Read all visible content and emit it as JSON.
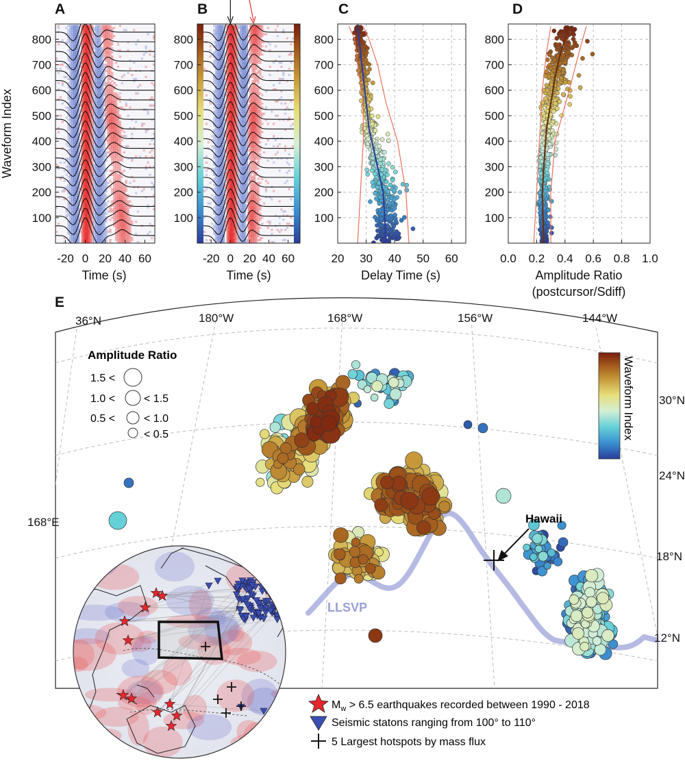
{
  "panels": {
    "A": {
      "label": "A",
      "ylabel": "Waveform Index",
      "xlabel": "Time (s)",
      "xticks": [
        -20,
        0,
        20,
        40,
        60
      ],
      "yticks": [
        100,
        200,
        300,
        400,
        500,
        600,
        700,
        800
      ],
      "xlim": [
        -30,
        70
      ],
      "ylim": [
        0,
        860
      ]
    },
    "B": {
      "label": "B",
      "xlabel": "Time (s)",
      "xticks": [
        -20,
        0,
        20,
        40,
        60
      ],
      "yticks": [
        100,
        200,
        300,
        400,
        500,
        600,
        700,
        800
      ],
      "xlim": [
        -28,
        66
      ],
      "ylim": [
        0,
        860
      ],
      "arrow_black_time": 0,
      "arrow_red_time": 24
    },
    "C": {
      "label": "C",
      "xlabel": "Delay Time (s)",
      "xticks": [
        20,
        30,
        40,
        50,
        60
      ],
      "yticks": [
        100,
        200,
        300,
        400,
        500,
        600,
        700,
        800
      ],
      "xlim": [
        20,
        65
      ],
      "ylim": [
        0,
        860
      ]
    },
    "D": {
      "label": "D",
      "xlabel": "Amplitude Ratio",
      "xlabel2": "(postcursor/Sdiff)",
      "xticks": [
        "0.0",
        "0.2",
        "0.4",
        "0.6",
        "0.8",
        "1.0"
      ],
      "yticks": [
        100,
        200,
        300,
        400,
        500,
        600,
        700,
        800
      ],
      "xlim": [
        0,
        1
      ],
      "ylim": [
        0,
        860
      ]
    },
    "E": {
      "label": "E",
      "lon_labels": [
        "180°W",
        "168°W",
        "156°W",
        "144°W"
      ],
      "lat_label_top": "36°N",
      "lat_labels_right": [
        "30°N",
        "24°N",
        "18°N",
        "12°N"
      ],
      "lon_label_left": "168°E",
      "legend_title": "Amplitude Ratio",
      "legend_rows": [
        {
          "left": "1.5 <",
          "right": ""
        },
        {
          "left": "1.0 <",
          "right": "< 1.5"
        },
        {
          "left": "0.5 <",
          "right": "< 1.0"
        },
        {
          "left": "",
          "right": "< 0.5"
        }
      ],
      "colorbar_label": "Waveform Index",
      "hawaii_label": "Hawaii",
      "llsvp_label": "LLSVP",
      "key": {
        "earthquakes_main": "M",
        "earthquakes_sub": "w",
        "earthquakes_rest": " > 6.5 earthquakes recorded between 1990 - 2018",
        "stations": "Seismic statons ranging from 100° to 110°",
        "hotspots": "5 Largest hotspots by mass flux"
      }
    }
  },
  "chart_data": [
    {
      "type": "heatmap",
      "title": "A",
      "xlabel": "Time (s)",
      "ylabel": "Waveform Index",
      "xlim": [
        -30,
        70
      ],
      "ylim": [
        0,
        860
      ],
      "main_peak_time": 0,
      "postcursor_time_range": [
        18,
        45
      ]
    },
    {
      "type": "heatmap",
      "title": "B",
      "xlabel": "Time (s)",
      "xlim": [
        -28,
        66
      ],
      "ylim": [
        0,
        860
      ],
      "main_peak_time": 0,
      "postcursor_time_range": [
        18,
        30
      ]
    },
    {
      "type": "scatter",
      "title": "C",
      "xlabel": "Delay Time (s)",
      "ylabel": "Waveform Index",
      "xlim": [
        20,
        65
      ],
      "ylim": [
        0,
        860
      ],
      "trend": {
        "x": [
          37,
          36,
          33,
          31,
          30,
          29,
          28,
          27
        ],
        "y": [
          0,
          200,
          350,
          450,
          550,
          650,
          750,
          850
        ]
      },
      "bounds_low": {
        "x": [
          27,
          28,
          29,
          29,
          27,
          26,
          24
        ],
        "y": [
          0,
          200,
          400,
          550,
          700,
          800,
          850
        ]
      },
      "bounds_high": {
        "x": [
          45,
          44,
          41,
          37,
          34,
          31,
          29
        ],
        "y": [
          0,
          200,
          400,
          550,
          700,
          800,
          850
        ]
      }
    },
    {
      "type": "scatter",
      "title": "D",
      "xlabel": "Amplitude Ratio (postcursor/Sdiff)",
      "xlim": [
        0,
        1
      ],
      "ylim": [
        0,
        860
      ],
      "trend": {
        "x": [
          0.25,
          0.24,
          0.25,
          0.27,
          0.3,
          0.33,
          0.37,
          0.43
        ],
        "y": [
          0,
          200,
          300,
          450,
          550,
          650,
          750,
          850
        ]
      },
      "bounds_low": {
        "x": [
          0.18,
          0.2,
          0.22,
          0.24,
          0.27,
          0.3
        ],
        "y": [
          0,
          200,
          400,
          600,
          750,
          850
        ]
      },
      "bounds_high": {
        "x": [
          0.3,
          0.3,
          0.33,
          0.43,
          0.5,
          0.55
        ],
        "y": [
          0,
          200,
          400,
          600,
          750,
          850
        ]
      }
    },
    {
      "type": "scatter",
      "title": "E",
      "x_axis": "Longitude",
      "y_axis": "Latitude",
      "lon_range": [
        "180°W",
        "144°W"
      ],
      "lat_range": [
        "12°N",
        "36°N"
      ],
      "color": "Waveform Index",
      "size": "Amplitude Ratio"
    }
  ]
}
